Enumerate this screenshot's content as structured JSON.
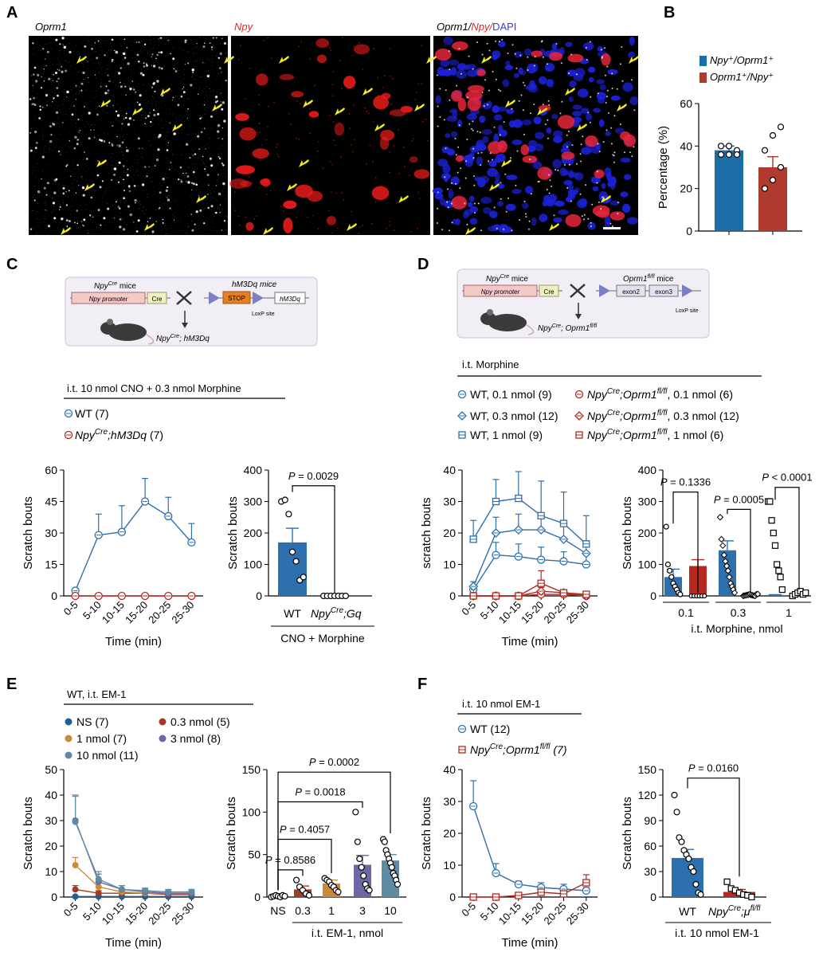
{
  "panels": {
    "A": "A",
    "B": "B",
    "C": "C",
    "D": "D",
    "E": "E",
    "F": "F"
  },
  "colors": {
    "wt_blue": "#2e6fad",
    "ko_red": "#b3291e",
    "bar_blue": "#1b6ea5",
    "bar_red": "#b13a2e",
    "ns": "#1f5f96",
    "d03": "#a33a26",
    "d1": "#c98a3a",
    "d3": "#6b68a5",
    "d10": "#5f8aa3"
  },
  "panel_a": {
    "images": [
      {
        "label": "Oprm1",
        "icon": "grayscale-puncta"
      },
      {
        "label": "Npy",
        "icon": "red-cells"
      },
      {
        "label_parts": [
          "Oprm1/",
          "Npy/",
          "DAPI"
        ],
        "icon": "merged-dapi"
      }
    ]
  },
  "panel_b": {
    "legend": [
      "Npy⁺/Oprm1⁺",
      "Oprm1⁺/Npy⁺"
    ],
    "chart_data": {
      "type": "bar",
      "ylabel": "Percentage (%)",
      "ylim": [
        0,
        60
      ],
      "yticks": [
        "0",
        "20",
        "40",
        "60"
      ],
      "categories": [
        "Npy+/Oprm1+",
        "Oprm1+/Npy+"
      ],
      "values": [
        38,
        30
      ],
      "errors": [
        2,
        5
      ],
      "points": [
        [
          36,
          36,
          38,
          40,
          40,
          36
        ],
        [
          20,
          24,
          30,
          38,
          45,
          49
        ]
      ]
    }
  },
  "panel_c": {
    "schematic": {
      "left_title": "Npy",
      "left_title_sup": "Cre",
      "left_title_suffix": " mice",
      "promoter": "Npy promoter",
      "cre": "Cre",
      "right_title": "hM3Dq mice",
      "stop": "STOP",
      "gene": "hM3Dq",
      "loxp": "LoxP site",
      "offspring": "Npy",
      "offspring_sup": "Cre",
      "offspring_suffix": ";  hM3Dq"
    },
    "treatment": "i.t. 10 nmol CNO + 0.3 nmol Morphine",
    "legend": [
      {
        "text": "WT (7)"
      },
      {
        "text_a": "Npy",
        "sup": "Cre",
        "text_b": ";hM3Dq",
        "text_c": " (7)"
      }
    ],
    "line_chart": {
      "type": "line",
      "ylabel": "Scratch bouts",
      "xlabel": "Time (min)",
      "ylim": [
        0,
        60
      ],
      "yticks": [
        "0",
        "15",
        "30",
        "45",
        "60"
      ],
      "categories": [
        "0-5",
        "5-10",
        "10-15",
        "15-20",
        "20-25",
        "25-30"
      ],
      "series": [
        {
          "name": "WT",
          "values": [
            2.5,
            29,
            30.5,
            45,
            38,
            25.5
          ],
          "errors": [
            1,
            10,
            12.5,
            11,
            9,
            9
          ]
        },
        {
          "name": "NpyCre;hM3Dq",
          "values": [
            0,
            0,
            0,
            0,
            0,
            0
          ],
          "errors": [
            0,
            0,
            0,
            0,
            0,
            0
          ]
        }
      ]
    },
    "bar_chart": {
      "type": "bar",
      "ylabel": "Scratch bouts",
      "ylim": [
        0,
        400
      ],
      "yticks": [
        "0",
        "100",
        "200",
        "300",
        "400"
      ],
      "categories": [
        "WT",
        "NpyCre;Gq"
      ],
      "xlabel": "CNO + Morphine",
      "pvalue": "P = 0.0029",
      "values": [
        170,
        0
      ],
      "errors": [
        45,
        0
      ],
      "points": [
        [
          300,
          305,
          260,
          140,
          110,
          50,
          60
        ],
        [
          0,
          0,
          0,
          0,
          0,
          0,
          0
        ]
      ],
      "tick_label_a": "WT",
      "tick_label_b_a": "Npy",
      "tick_label_b_sup": "Cre",
      "tick_label_b_b": ";Gq"
    }
  },
  "panel_d": {
    "schematic": {
      "left_title": "Npy",
      "left_title_sup": "Cre",
      "left_title_suffix": " mice",
      "promoter": "Npy promoter",
      "cre": "Cre",
      "right_title": "Oprm1",
      "right_title_sup": "fl/fl",
      "right_title_suffix": " mice",
      "exon2": "exon2",
      "exon3": "exon3",
      "loxp": "LoxP site",
      "offspring": "Npy",
      "offspring_sup": "Cre",
      "offspring_mid": ";  Oprm1",
      "offspring_sup2": "fl/fl"
    },
    "treatment": "i.t. Morphine",
    "legend": [
      {
        "text": "WT, 0.1 nmol (9)"
      },
      {
        "text": "WT, 0.3 nmol (12)"
      },
      {
        "text": "WT, 1 nmol (9)"
      },
      {
        "a": "Npy",
        "sup": "Cre",
        "b": ";Oprm1",
        "sup2": "fl/fl",
        "c": ", 0.1 nmol (6)"
      },
      {
        "a": "Npy",
        "sup": "Cre",
        "b": ";Oprm1",
        "sup2": "fl/fl",
        "c": ", 0.3 nmol (12)"
      },
      {
        "a": "Npy",
        "sup": "Cre",
        "b": ";Oprm1",
        "sup2": "fl/fl",
        "c": ", 1 nmol (6)"
      }
    ],
    "line_chart": {
      "type": "line",
      "ylabel": "scratch bouts",
      "xlabel": "Time (min)",
      "ylim": [
        0,
        40
      ],
      "yticks": [
        "0",
        "10",
        "20",
        "30",
        "40"
      ],
      "categories": [
        "0-5",
        "5-10",
        "10-15",
        "15-20",
        "20-25",
        "25-30"
      ],
      "series": [
        {
          "name": "WT 0.1",
          "values": [
            2,
            13,
            12.5,
            11.5,
            11,
            10
          ],
          "errors": [
            1,
            4,
            4,
            4,
            3,
            3
          ]
        },
        {
          "name": "WT 0.3",
          "values": [
            3,
            20,
            21,
            21,
            18,
            13.5
          ],
          "errors": [
            1.5,
            5,
            5,
            5,
            5,
            4
          ]
        },
        {
          "name": "WT 1",
          "values": [
            18,
            30,
            31,
            25.5,
            23,
            16.5
          ],
          "errors": [
            6,
            7,
            8.5,
            11,
            10,
            9
          ]
        },
        {
          "name": "KO 0.1",
          "values": [
            0,
            0,
            0,
            0.5,
            0.5,
            0
          ],
          "errors": [
            0,
            0,
            0,
            0.5,
            0.5,
            0
          ]
        },
        {
          "name": "KO 0.3",
          "values": [
            0,
            0,
            0,
            1.5,
            1,
            0
          ],
          "errors": [
            0,
            0,
            0.3,
            1.2,
            1,
            0.3
          ]
        },
        {
          "name": "KO 1",
          "values": [
            0,
            0,
            0,
            4,
            1,
            0.5
          ],
          "errors": [
            0,
            0,
            0,
            4,
            1,
            0.5
          ]
        }
      ]
    },
    "bar_chart": {
      "type": "bar",
      "ylabel": "Scratch bouts",
      "ylim": [
        0,
        400
      ],
      "yticks": [
        "0",
        "100",
        "200",
        "300",
        "400"
      ],
      "categories": [
        "0.1",
        "0.3",
        "1"
      ],
      "xlabel": "i.t. Morphine, nmol",
      "pvalues": [
        "P = 0.1336",
        "P = 0.0005",
        "P < 0.0001"
      ],
      "values": [
        60,
        95,
        145,
        2,
        3,
        8
      ],
      "errors": [
        25,
        20,
        30,
        1,
        1,
        3
      ],
      "points": [
        [
          220,
          100,
          80,
          60,
          40,
          30,
          20,
          10,
          5
        ],
        [
          0,
          0,
          0,
          0,
          0,
          0
        ],
        [
          250,
          180,
          160,
          130,
          110,
          95,
          80,
          60,
          40,
          30,
          20,
          10
        ],
        [
          0,
          1,
          2,
          3,
          4,
          5,
          3,
          2,
          1,
          0,
          5,
          6
        ],
        [
          300,
          300,
          240,
          200,
          160,
          100,
          80,
          60,
          20
        ],
        [
          0,
          5,
          10,
          15,
          5,
          10
        ]
      ]
    }
  },
  "panel_e": {
    "treatment": "WT, i.t. EM-1",
    "legend": [
      "NS (7)",
      "0.3 nmol (5)",
      "1 nmol (7)",
      "3 nmol (8)",
      "10 nmol (11)"
    ],
    "line_chart": {
      "type": "line",
      "ylabel": "Scratch bouts",
      "xlabel": "Time (min)",
      "ylim": [
        0,
        50
      ],
      "yticks": [
        "0",
        "10",
        "20",
        "30",
        "40",
        "50"
      ],
      "categories": [
        "0-5",
        "5-10",
        "10-15",
        "15-20",
        "20-25",
        "25-30"
      ],
      "series": [
        {
          "name": "NS",
          "values": [
            0.2,
            0.2,
            0.2,
            0.2,
            0.2,
            0.2
          ],
          "errors": [
            0.2,
            0.2,
            0.2,
            0.2,
            0.2,
            0.2
          ]
        },
        {
          "name": "0.3 nmol",
          "values": [
            3,
            1.5,
            1.5,
            1.5,
            1,
            1
          ],
          "errors": [
            1.5,
            1,
            1,
            1,
            0.5,
            0.5
          ]
        },
        {
          "name": "1 nmol",
          "values": [
            12.5,
            4,
            2,
            1.5,
            1.5,
            1.5
          ],
          "errors": [
            3,
            2,
            1,
            1,
            0.5,
            0.5
          ]
        },
        {
          "name": "3 nmol",
          "values": [
            30,
            6,
            3,
            2,
            1.5,
            1.5
          ],
          "errors": [
            10,
            3,
            1.5,
            1,
            1,
            1
          ]
        },
        {
          "name": "10 nmol",
          "values": [
            29.5,
            7,
            3,
            2.5,
            2,
            2
          ],
          "errors": [
            10,
            3,
            1.5,
            1,
            1,
            1
          ]
        }
      ]
    },
    "bar_chart": {
      "type": "bar",
      "ylabel": "Scratch bouts",
      "ylim": [
        0,
        150
      ],
      "yticks": [
        "0",
        "50",
        "100",
        "150"
      ],
      "categories": [
        "NS",
        "0.3",
        "1",
        "3",
        "10"
      ],
      "xlabel": "i.t. EM-1, nmol",
      "pvalues": [
        "P = 0.8586",
        "P = 0.4057",
        "P = 0.0018",
        "P = 0.0002"
      ],
      "values": [
        1,
        9,
        16,
        38,
        43
      ],
      "errors": [
        0.5,
        4,
        4,
        11,
        7
      ],
      "points": [
        [
          0,
          1,
          2,
          1,
          0,
          2,
          1
        ],
        [
          20,
          12,
          8,
          4,
          2
        ],
        [
          22,
          20,
          18,
          14,
          12,
          8,
          6
        ],
        [
          100,
          65,
          45,
          35,
          25,
          15,
          10,
          8
        ],
        [
          68,
          65,
          55,
          50,
          45,
          40,
          35,
          28,
          25,
          20,
          15
        ]
      ]
    }
  },
  "panel_f": {
    "treatment": "i.t. 10 nmol EM-1",
    "legend": [
      {
        "text": "WT (12)"
      },
      {
        "a": "Npy",
        "sup": "Cre",
        "b": ";Oprm1",
        "sup2": "fl/fl",
        "c": " (7)"
      }
    ],
    "line_chart": {
      "type": "line",
      "ylabel": "Scratch bouts",
      "xlabel": "Time (min)",
      "ylim": [
        0,
        40
      ],
      "yticks": [
        "0",
        "10",
        "20",
        "30",
        "40"
      ],
      "categories": [
        "0-5",
        "5-10",
        "10-15",
        "15-20",
        "20-25",
        "25-30"
      ],
      "series": [
        {
          "name": "WT",
          "values": [
            28.5,
            7.5,
            4,
            3,
            2.5,
            2
          ],
          "errors": [
            8,
            3,
            1,
            1.5,
            1.5,
            1
          ]
        },
        {
          "name": "NpyCre;Oprm1fl/fl",
          "values": [
            0,
            0,
            0.5,
            1.5,
            1,
            4.5
          ],
          "errors": [
            0,
            0,
            0.5,
            1,
            0.5,
            2.5
          ]
        }
      ]
    },
    "bar_chart": {
      "type": "bar",
      "ylabel": "Scratch bouts",
      "ylim": [
        0,
        150
      ],
      "yticks": [
        "0",
        "30",
        "60",
        "90",
        "120",
        "150"
      ],
      "categories": [
        "WT",
        "NpyCre;μfl/fl"
      ],
      "xlabel": "i.t. 10 nmol EM-1",
      "pvalue": "P = 0.0160",
      "values": [
        46,
        6
      ],
      "errors": [
        10,
        3
      ],
      "points": [
        [
          120,
          100,
          70,
          65,
          55,
          50,
          45,
          35,
          30,
          15,
          5,
          3
        ],
        [
          18,
          10,
          8,
          5,
          3,
          2,
          0
        ]
      ],
      "tick_label_a": "WT",
      "tick_label_b_a": "Npy",
      "tick_label_b_sup": "Cre",
      "tick_label_b_b": ";μ",
      "tick_label_b_sup2": "fl/fl"
    }
  }
}
